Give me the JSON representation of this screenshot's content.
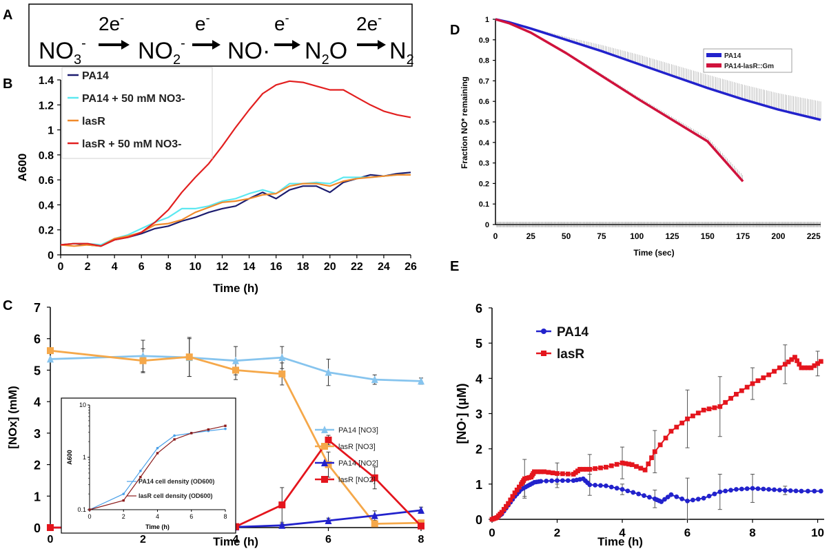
{
  "panel_labels": {
    "a": "A",
    "b": "B",
    "c": "C",
    "d": "D",
    "e": "E"
  },
  "equation": {
    "species": [
      "NO",
      "3",
      "-",
      "NO",
      "2",
      "-",
      "NO·",
      "N",
      "2",
      "O",
      "N",
      "2"
    ],
    "steps": [
      {
        "coef": "2e",
        "sup": "-"
      },
      {
        "coef": "e",
        "sup": "-"
      },
      {
        "coef": "e",
        "sup": "-"
      },
      {
        "coef": "2e",
        "sup": "-"
      }
    ]
  },
  "colors": {
    "navy": "#1c1c6e",
    "cyan": "#5ce8f0",
    "orange": "#f08a2a",
    "red": "#e21f1f",
    "lightblue": "#86c4ee",
    "orange2": "#f5a84a",
    "blue": "#2222cc",
    "red2": "#e4151d",
    "errbar": "#999999",
    "crimson": "#d0123c"
  },
  "chart_data": [
    {
      "id": "B",
      "type": "line",
      "xlabel": "Time (h)",
      "ylabel": "A600",
      "xlim": [
        0,
        26
      ],
      "ylim": [
        0,
        1.4
      ],
      "xticks": [
        0,
        2,
        4,
        6,
        8,
        10,
        12,
        14,
        16,
        18,
        20,
        22,
        24,
        26
      ],
      "yticks": [
        0,
        0.2,
        0.4,
        0.6,
        0.8,
        1,
        1.2,
        1.4
      ],
      "ytick_labels": [
        "0",
        "0.2",
        "0.4",
        "0.6",
        "0.8",
        "1",
        "1.2",
        "1.4"
      ],
      "x": [
        0,
        1,
        2,
        3,
        4,
        5,
        6,
        7,
        8,
        9,
        10,
        11,
        12,
        13,
        14,
        15,
        16,
        17,
        18,
        19,
        20,
        21,
        22,
        23,
        24,
        25,
        26
      ],
      "legend_position": "top-left",
      "series": [
        {
          "name": "PA14",
          "color": "#1c1c6e",
          "values": [
            0.08,
            0.09,
            0.08,
            0.07,
            0.12,
            0.14,
            0.17,
            0.21,
            0.23,
            0.27,
            0.3,
            0.34,
            0.37,
            0.39,
            0.45,
            0.5,
            0.45,
            0.52,
            0.55,
            0.55,
            0.5,
            0.58,
            0.61,
            0.64,
            0.63,
            0.65,
            0.66
          ]
        },
        {
          "name": "PA14 + 50 mM NO3-",
          "color": "#5ce8f0",
          "values": [
            0.08,
            0.09,
            0.09,
            0.08,
            0.13,
            0.16,
            0.21,
            0.26,
            0.3,
            0.37,
            0.37,
            0.39,
            0.43,
            0.45,
            0.49,
            0.52,
            0.49,
            0.57,
            0.57,
            0.58,
            0.57,
            0.62,
            0.62,
            0.62,
            0.63,
            0.64,
            0.64
          ]
        },
        {
          "name": "lasR",
          "color": "#f08a2a",
          "values": [
            0.08,
            0.07,
            0.08,
            0.07,
            0.13,
            0.15,
            0.18,
            0.24,
            0.25,
            0.28,
            0.34,
            0.38,
            0.42,
            0.43,
            0.45,
            0.48,
            0.49,
            0.55,
            0.57,
            0.57,
            0.55,
            0.59,
            0.61,
            0.62,
            0.63,
            0.64,
            0.64
          ]
        },
        {
          "name": "lasR + 50 mM NO3-",
          "color": "#e21f1f",
          "values": [
            0.08,
            0.09,
            0.09,
            0.07,
            0.12,
            0.14,
            0.18,
            0.26,
            0.36,
            0.5,
            0.62,
            0.73,
            0.87,
            1.02,
            1.16,
            1.29,
            1.36,
            1.39,
            1.38,
            1.35,
            1.32,
            1.32,
            1.26,
            1.2,
            1.15,
            1.12,
            1.1
          ]
        }
      ]
    },
    {
      "id": "C",
      "type": "line",
      "xlabel": "Time (h)",
      "ylabel": "[NOx] (mM)",
      "xlim": [
        0,
        8
      ],
      "ylim": [
        0,
        7
      ],
      "xticks": [
        0,
        2,
        4,
        6,
        8
      ],
      "yticks": [
        0,
        1,
        2,
        3,
        4,
        5,
        6,
        7
      ],
      "legend_position": "right",
      "series": [
        {
          "name": "PA14 [NO3]",
          "color": "#86c4ee",
          "marker": "triangle",
          "x": [
            0,
            2,
            3,
            4,
            5,
            6,
            7,
            8
          ],
          "values": [
            5.35,
            5.45,
            5.4,
            5.3,
            5.4,
            4.93,
            4.7,
            4.65
          ],
          "errors": [
            0,
            0.5,
            0.6,
            0.45,
            0.35,
            0.42,
            0.15,
            0.1
          ]
        },
        {
          "name": "lasR [NO3]",
          "color": "#f5a84a",
          "marker": "square",
          "x": [
            0,
            2,
            3,
            4,
            5,
            6,
            7,
            8
          ],
          "values": [
            5.62,
            5.3,
            5.42,
            5.0,
            4.88,
            2.0,
            0.12,
            0.15
          ],
          "errors": [
            0,
            0.38,
            0.62,
            0.3,
            0.35,
            0.4,
            0.05,
            0.05
          ]
        },
        {
          "name": "PA14 [NO2]",
          "color": "#2222cc",
          "marker": "triangle",
          "x": [
            0,
            2,
            3,
            4,
            5,
            6,
            7,
            8
          ],
          "values": [
            0,
            0,
            0,
            0.02,
            0.07,
            0.22,
            0.38,
            0.55
          ],
          "errors": [
            0,
            0,
            0,
            0,
            0.05,
            0.08,
            0.15,
            0.1
          ]
        },
        {
          "name": "lasR [NO2]",
          "color": "#e4151d",
          "marker": "square",
          "x": [
            0,
            2,
            3,
            4,
            5,
            6,
            7,
            8
          ],
          "values": [
            0,
            0,
            0,
            0.03,
            0.72,
            2.78,
            1.58,
            0.05
          ],
          "errors": [
            0,
            0,
            0,
            0,
            0.55,
            0.15,
            0.35,
            0
          ]
        }
      ]
    },
    {
      "id": "C-inset",
      "type": "line",
      "xlabel": "Time (h)",
      "ylabel": "A600",
      "xlim": [
        0,
        8
      ],
      "ylim": [
        0.1,
        10
      ],
      "yscale": "log",
      "xticks": [
        0,
        2,
        4,
        6,
        8
      ],
      "yticks": [
        0.1,
        1,
        10
      ],
      "ytick_labels": [
        "0.1",
        "1",
        "10"
      ],
      "series": [
        {
          "name": "PA14 cell density (OD600)",
          "color": "#4aa0e8",
          "x": [
            0,
            2,
            3,
            4,
            5,
            6,
            7,
            8
          ],
          "values": [
            0.1,
            0.2,
            0.55,
            1.5,
            2.6,
            2.9,
            3.2,
            3.5
          ]
        },
        {
          "name": "lasR cell density (OD600)",
          "color": "#8b1a1a",
          "x": [
            0,
            2,
            3,
            4,
            5,
            6,
            7,
            8
          ],
          "values": [
            0.1,
            0.15,
            0.42,
            1.2,
            2.2,
            2.9,
            3.4,
            4.0
          ]
        }
      ]
    },
    {
      "id": "D",
      "type": "line",
      "xlabel": "Time (sec)",
      "ylabel": "Fraction NO* remaining",
      "xlim": [
        0,
        230
      ],
      "ylim": [
        0,
        1
      ],
      "xticks": [
        0,
        25,
        50,
        75,
        100,
        125,
        150,
        175,
        200,
        225
      ],
      "yticks": [
        0,
        0.1,
        0.2,
        0.3,
        0.4,
        0.5,
        0.6,
        0.7,
        0.8,
        0.9,
        1
      ],
      "ytick_labels": [
        "0",
        "0.1",
        "0.2",
        "0.3",
        "0.4",
        "0.5",
        "0.6",
        "0.7",
        "0.8",
        "0.9",
        "1"
      ],
      "legend_position": "top-right",
      "series": [
        {
          "name": "PA14",
          "color": "#2222cc",
          "x": [
            0,
            10,
            25,
            50,
            75,
            100,
            125,
            150,
            175,
            200,
            230
          ],
          "values": [
            1.0,
            0.985,
            0.955,
            0.9,
            0.845,
            0.785,
            0.725,
            0.665,
            0.61,
            0.56,
            0.51
          ],
          "errors": [
            0,
            0.002,
            0.005,
            0.015,
            0.03,
            0.045,
            0.055,
            0.065,
            0.072,
            0.08,
            0.09
          ]
        },
        {
          "name": "PA14-lasR::Gm",
          "color": "#d0123c",
          "x": [
            0,
            10,
            25,
            50,
            75,
            100,
            125,
            150,
            175
          ],
          "values": [
            1.0,
            0.98,
            0.935,
            0.835,
            0.725,
            0.615,
            0.51,
            0.405,
            0.21
          ],
          "errors": [
            0,
            0.002,
            0.005,
            0.008,
            0.01,
            0.012,
            0.015,
            0.02,
            0.03
          ]
        }
      ]
    },
    {
      "id": "E",
      "type": "line",
      "xlabel": "Time (h)",
      "ylabel": "[NO·] (μM)",
      "xlim": [
        0,
        10.2
      ],
      "ylim": [
        0,
        6
      ],
      "xticks": [
        0,
        2,
        4,
        6,
        8,
        10
      ],
      "yticks": [
        0,
        1,
        2,
        3,
        4,
        5,
        6
      ],
      "legend_position": "top-left",
      "series": [
        {
          "name": "PA14",
          "color": "#2222cc",
          "marker": "circle",
          "x": [
            0,
            0.15,
            0.3,
            0.5,
            0.7,
            0.9,
            1.1,
            1.3,
            1.5,
            2.0,
            2.5,
            2.8,
            3.0,
            3.5,
            4.0,
            4.5,
            5.0,
            5.2,
            5.5,
            6.0,
            6.5,
            7.0,
            7.5,
            8.0,
            8.5,
            9.0,
            9.5,
            10.1
          ],
          "values": [
            0,
            0.05,
            0.15,
            0.4,
            0.65,
            0.85,
            0.95,
            1.05,
            1.08,
            1.1,
            1.1,
            1.15,
            0.98,
            0.95,
            0.85,
            0.72,
            0.58,
            0.5,
            0.7,
            0.52,
            0.6,
            0.78,
            0.85,
            0.88,
            0.85,
            0.82,
            0.8,
            0.8
          ],
          "errors": [
            [
              1.0,
              0.25
            ],
            [
              2.0,
              0.2
            ],
            [
              3.0,
              0.3
            ],
            [
              4.0,
              0.15
            ],
            [
              5.0,
              0.25
            ],
            [
              6.0,
              0.65
            ],
            [
              7.0,
              0.5
            ],
            [
              8.0,
              0.4
            ],
            [
              9.0,
              0.12
            ]
          ]
        },
        {
          "name": "lasR",
          "color": "#e4151d",
          "marker": "square",
          "x": [
            0,
            0.15,
            0.3,
            0.5,
            0.7,
            0.9,
            1.0,
            1.2,
            1.3,
            1.6,
            2.0,
            2.5,
            2.7,
            3.0,
            3.5,
            4.0,
            4.3,
            4.7,
            5.0,
            5.5,
            6.0,
            6.5,
            7.0,
            7.5,
            8.0,
            8.5,
            9.0,
            9.3,
            9.5,
            9.8,
            10.1
          ],
          "values": [
            0,
            0.05,
            0.2,
            0.45,
            0.75,
            1.0,
            1.15,
            1.2,
            1.35,
            1.35,
            1.3,
            1.28,
            1.42,
            1.42,
            1.48,
            1.6,
            1.55,
            1.4,
            1.92,
            2.5,
            2.85,
            3.1,
            3.2,
            3.55,
            3.85,
            4.1,
            4.4,
            4.6,
            4.3,
            4.3,
            4.48
          ],
          "errors": [
            [
              1.0,
              0.55
            ],
            [
              2.0,
              0.3
            ],
            [
              3.0,
              0.42
            ],
            [
              4.0,
              0.45
            ],
            [
              5.0,
              0.6
            ],
            [
              6.0,
              0.82
            ],
            [
              7.0,
              0.85
            ],
            [
              8.0,
              0.45
            ],
            [
              9.0,
              0.55
            ],
            [
              10.0,
              0.35
            ]
          ]
        }
      ]
    }
  ]
}
